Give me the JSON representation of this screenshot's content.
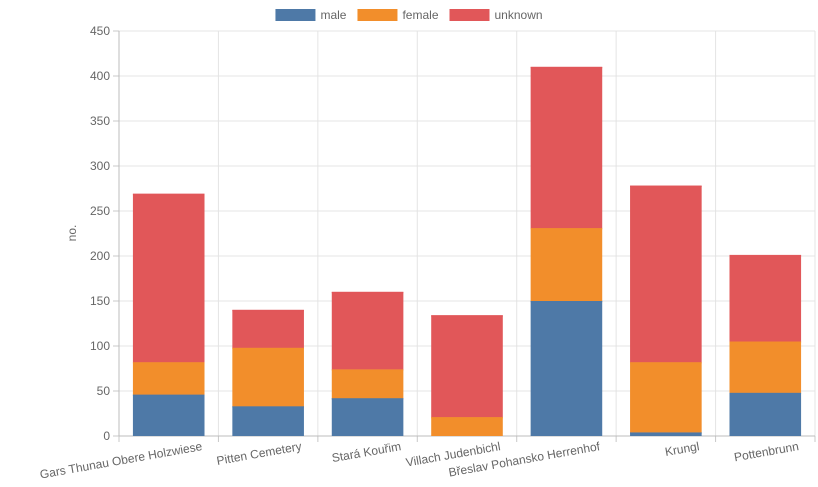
{
  "chart_data": {
    "type": "bar",
    "stacked": true,
    "categories": [
      "Gars Thunau Obere Holzwiese",
      "Pitten Cemetery",
      "Stará Kouřim",
      "Villach Judenbichl",
      "Břeslav Pohansko Herrenhof",
      "Krungl",
      "Pottenbrunn"
    ],
    "series": [
      {
        "name": "male",
        "color": "#4e79a7",
        "values": [
          46,
          33,
          42,
          0,
          150,
          4,
          48
        ]
      },
      {
        "name": "female",
        "color": "#f28e2b",
        "values": [
          36,
          65,
          32,
          21,
          81,
          78,
          57
        ]
      },
      {
        "name": "unknown",
        "color": "#e15759",
        "values": [
          187,
          42,
          86,
          113,
          179,
          196,
          96
        ]
      }
    ],
    "title": "",
    "xlabel": "",
    "ylabel": "no.",
    "ylim": [
      0,
      450
    ],
    "yticks": [
      0,
      50,
      100,
      150,
      200,
      250,
      300,
      350,
      400,
      450
    ],
    "grid": true,
    "legend_position": "top"
  }
}
